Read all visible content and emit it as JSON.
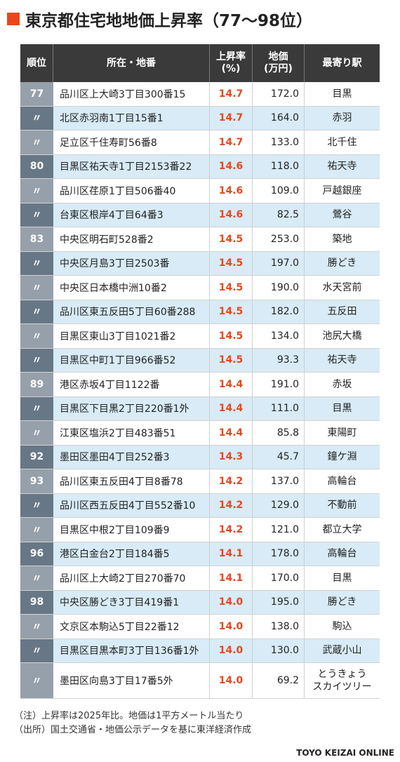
{
  "title": "東京都住宅地地価上昇率（77〜98位）",
  "colors": {
    "accent": "#e8471d",
    "header_bg": "#3a3a3a",
    "row_alt": "#d8ebf6",
    "rank_light": "#96a0aa",
    "rank_dark": "#687786"
  },
  "headers": {
    "rank": "順位",
    "address": "所在・地番",
    "rate_1": "上昇率",
    "rate_2": "(%)",
    "price_1": "地価",
    "price_2": "(万円)",
    "station": "最寄り駅"
  },
  "chart_data": {
    "type": "table",
    "columns": [
      "順位",
      "所在・地番",
      "上昇率(%)",
      "地価(万円)",
      "最寄り駅"
    ],
    "rows": [
      [
        "77",
        "品川区上大崎3丁目300番15",
        "14.7",
        "172.0",
        "目黒"
      ],
      [
        "〃",
        "北区赤羽南1丁目15番1",
        "14.7",
        "164.0",
        "赤羽"
      ],
      [
        "〃",
        "足立区千住寿町56番8",
        "14.7",
        "133.0",
        "北千住"
      ],
      [
        "80",
        "目黒区祐天寺1丁目2153番22",
        "14.6",
        "118.0",
        "祐天寺"
      ],
      [
        "〃",
        "品川区荏原1丁目506番40",
        "14.6",
        "109.0",
        "戸越銀座"
      ],
      [
        "〃",
        "台東区根岸4丁目64番3",
        "14.6",
        "82.5",
        "鶯谷"
      ],
      [
        "83",
        "中央区明石町528番2",
        "14.5",
        "253.0",
        "築地"
      ],
      [
        "〃",
        "中央区月島3丁目2503番",
        "14.5",
        "197.0",
        "勝どき"
      ],
      [
        "〃",
        "中央区日本橋中洲10番2",
        "14.5",
        "190.0",
        "水天宮前"
      ],
      [
        "〃",
        "品川区東五反田5丁目60番288",
        "14.5",
        "182.0",
        "五反田"
      ],
      [
        "〃",
        "目黒区東山3丁目1021番2",
        "14.5",
        "134.0",
        "池尻大橋"
      ],
      [
        "〃",
        "目黒区中町1丁目966番52",
        "14.5",
        "93.3",
        "祐天寺"
      ],
      [
        "89",
        "港区赤坂4丁目1122番",
        "14.4",
        "191.0",
        "赤坂"
      ],
      [
        "〃",
        "目黒区下目黒2丁目220番1外",
        "14.4",
        "111.0",
        "目黒"
      ],
      [
        "〃",
        "江東区塩浜2丁目483番51",
        "14.4",
        "85.8",
        "東陽町"
      ],
      [
        "92",
        "墨田区墨田4丁目252番3",
        "14.3",
        "45.7",
        "鐘ケ淵"
      ],
      [
        "93",
        "品川区東五反田4丁目8番78",
        "14.2",
        "137.0",
        "高輪台"
      ],
      [
        "〃",
        "品川区西五反田4丁目552番10",
        "14.2",
        "129.0",
        "不動前"
      ],
      [
        "〃",
        "目黒区中根2丁目109番9",
        "14.2",
        "121.0",
        "都立大学"
      ],
      [
        "96",
        "港区白金台2丁目184番5",
        "14.1",
        "178.0",
        "高輪台"
      ],
      [
        "〃",
        "品川区上大崎2丁目270番70",
        "14.1",
        "170.0",
        "目黒"
      ],
      [
        "98",
        "中央区勝どき3丁目419番1",
        "14.0",
        "195.0",
        "勝どき"
      ],
      [
        "〃",
        "文京区本駒込5丁目22番12",
        "14.0",
        "138.0",
        "駒込"
      ],
      [
        "〃",
        "目黒区目黒本町3丁目136番1外",
        "14.0",
        "130.0",
        "武蔵小山"
      ],
      [
        "〃",
        "墨田区向島3丁目17番5外",
        "14.0",
        "69.2",
        "とうきょう\nスカイツリー"
      ]
    ]
  },
  "notes": {
    "note": "（注）上昇率は2025年比。地価は1平方メートル当たり",
    "source": "（出所）国土交通省・地価公示データを基に東洋経済作成"
  },
  "credit": "TOYO KEIZAI ONLINE"
}
